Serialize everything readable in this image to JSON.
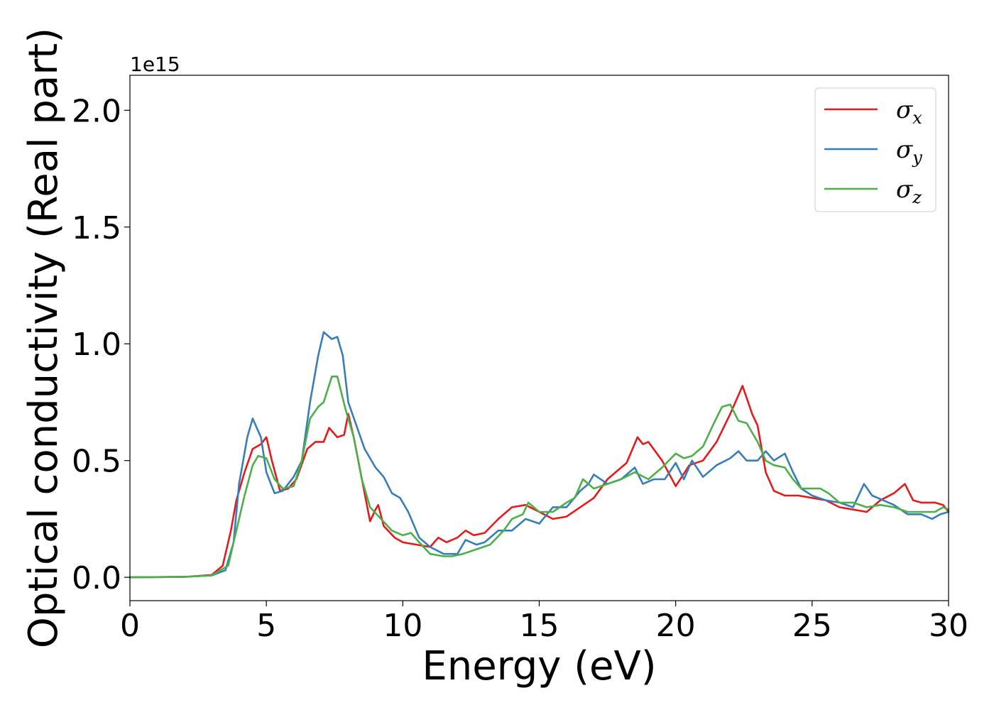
{
  "chart_data": {
    "type": "line",
    "xlabel": "Energy (eV)",
    "ylabel": "Optical conductivity (Real part)",
    "y_offset_label": "1e15",
    "xlim": [
      0,
      30
    ],
    "ylim": [
      -0.1,
      2.15
    ],
    "xticks": [
      0,
      5,
      10,
      15,
      20,
      25,
      30
    ],
    "xtick_labels": [
      "0",
      "5",
      "10",
      "15",
      "20",
      "25",
      "30"
    ],
    "yticks": [
      0.0,
      0.5,
      1.0,
      1.5,
      2.0
    ],
    "ytick_labels": [
      "0.0",
      "0.5",
      "1.0",
      "1.5",
      "2.0"
    ],
    "grid": false,
    "legend_position": "top-right",
    "series": [
      {
        "name": "σx",
        "symbol": "σ",
        "subscript": "x",
        "color": "#e41a1c",
        "points": [
          [
            0,
            0
          ],
          [
            2,
            0.002
          ],
          [
            3,
            0.01
          ],
          [
            3.4,
            0.05
          ],
          [
            3.7,
            0.2
          ],
          [
            3.9,
            0.33
          ],
          [
            4.2,
            0.45
          ],
          [
            4.5,
            0.55
          ],
          [
            4.8,
            0.57
          ],
          [
            5.0,
            0.6
          ],
          [
            5.2,
            0.5
          ],
          [
            5.5,
            0.37
          ],
          [
            5.8,
            0.38
          ],
          [
            6.1,
            0.42
          ],
          [
            6.5,
            0.55
          ],
          [
            6.8,
            0.58
          ],
          [
            7.1,
            0.58
          ],
          [
            7.3,
            0.64
          ],
          [
            7.6,
            0.6
          ],
          [
            7.85,
            0.61
          ],
          [
            8.0,
            0.7
          ],
          [
            8.2,
            0.6
          ],
          [
            8.5,
            0.42
          ],
          [
            8.8,
            0.24
          ],
          [
            9.0,
            0.29
          ],
          [
            9.1,
            0.31
          ],
          [
            9.3,
            0.22
          ],
          [
            9.7,
            0.17
          ],
          [
            10.0,
            0.15
          ],
          [
            10.5,
            0.14
          ],
          [
            11.0,
            0.13
          ],
          [
            11.3,
            0.17
          ],
          [
            11.6,
            0.15
          ],
          [
            12.0,
            0.17
          ],
          [
            12.3,
            0.2
          ],
          [
            12.6,
            0.18
          ],
          [
            13.0,
            0.19
          ],
          [
            13.5,
            0.25
          ],
          [
            14.0,
            0.3
          ],
          [
            14.5,
            0.31
          ],
          [
            15.0,
            0.28
          ],
          [
            15.5,
            0.25
          ],
          [
            16.0,
            0.26
          ],
          [
            16.5,
            0.3
          ],
          [
            17.0,
            0.34
          ],
          [
            17.5,
            0.42
          ],
          [
            17.8,
            0.45
          ],
          [
            18.2,
            0.49
          ],
          [
            18.6,
            0.6
          ],
          [
            18.8,
            0.57
          ],
          [
            19.0,
            0.58
          ],
          [
            19.5,
            0.5
          ],
          [
            20.0,
            0.39
          ],
          [
            20.5,
            0.48
          ],
          [
            21.0,
            0.5
          ],
          [
            21.5,
            0.58
          ],
          [
            22.0,
            0.7
          ],
          [
            22.3,
            0.78
          ],
          [
            22.45,
            0.82
          ],
          [
            22.8,
            0.7
          ],
          [
            23.0,
            0.65
          ],
          [
            23.3,
            0.45
          ],
          [
            23.6,
            0.37
          ],
          [
            24.0,
            0.35
          ],
          [
            24.5,
            0.35
          ],
          [
            25.0,
            0.34
          ],
          [
            25.5,
            0.33
          ],
          [
            26.0,
            0.3
          ],
          [
            26.5,
            0.29
          ],
          [
            27.0,
            0.28
          ],
          [
            27.5,
            0.33
          ],
          [
            28.0,
            0.36
          ],
          [
            28.4,
            0.4
          ],
          [
            28.7,
            0.33
          ],
          [
            29.0,
            0.32
          ],
          [
            29.5,
            0.32
          ],
          [
            29.8,
            0.31
          ],
          [
            30.0,
            0.28
          ]
        ]
      },
      {
        "name": "σy",
        "symbol": "σ",
        "subscript": "y",
        "color": "#377eb8",
        "points": [
          [
            0,
            0
          ],
          [
            2,
            0.002
          ],
          [
            3,
            0.008
          ],
          [
            3.5,
            0.03
          ],
          [
            3.8,
            0.15
          ],
          [
            4.0,
            0.4
          ],
          [
            4.3,
            0.6
          ],
          [
            4.5,
            0.68
          ],
          [
            4.8,
            0.6
          ],
          [
            5.0,
            0.45
          ],
          [
            5.3,
            0.36
          ],
          [
            5.6,
            0.37
          ],
          [
            6.0,
            0.43
          ],
          [
            6.3,
            0.5
          ],
          [
            6.6,
            0.75
          ],
          [
            6.9,
            0.95
          ],
          [
            7.1,
            1.05
          ],
          [
            7.4,
            1.02
          ],
          [
            7.6,
            1.03
          ],
          [
            7.8,
            0.95
          ],
          [
            8.0,
            0.75
          ],
          [
            8.3,
            0.65
          ],
          [
            8.6,
            0.55
          ],
          [
            9.0,
            0.47
          ],
          [
            9.3,
            0.43
          ],
          [
            9.6,
            0.36
          ],
          [
            9.9,
            0.34
          ],
          [
            10.2,
            0.28
          ],
          [
            10.6,
            0.17
          ],
          [
            11.0,
            0.13
          ],
          [
            11.5,
            0.1
          ],
          [
            12.0,
            0.1
          ],
          [
            12.3,
            0.16
          ],
          [
            12.7,
            0.14
          ],
          [
            13.0,
            0.15
          ],
          [
            13.5,
            0.2
          ],
          [
            14.0,
            0.2
          ],
          [
            14.5,
            0.25
          ],
          [
            15.0,
            0.23
          ],
          [
            15.5,
            0.3
          ],
          [
            16.0,
            0.3
          ],
          [
            16.5,
            0.37
          ],
          [
            16.8,
            0.4
          ],
          [
            17.0,
            0.44
          ],
          [
            17.5,
            0.4
          ],
          [
            18.0,
            0.42
          ],
          [
            18.5,
            0.47
          ],
          [
            18.8,
            0.4
          ],
          [
            19.2,
            0.42
          ],
          [
            19.6,
            0.42
          ],
          [
            20.0,
            0.49
          ],
          [
            20.3,
            0.42
          ],
          [
            20.6,
            0.5
          ],
          [
            21.0,
            0.43
          ],
          [
            21.5,
            0.48
          ],
          [
            22.0,
            0.51
          ],
          [
            22.3,
            0.54
          ],
          [
            22.6,
            0.5
          ],
          [
            23.0,
            0.5
          ],
          [
            23.3,
            0.54
          ],
          [
            23.6,
            0.5
          ],
          [
            24.0,
            0.53
          ],
          [
            24.3,
            0.45
          ],
          [
            24.6,
            0.38
          ],
          [
            25.0,
            0.35
          ],
          [
            25.5,
            0.33
          ],
          [
            26.0,
            0.32
          ],
          [
            26.5,
            0.3
          ],
          [
            26.9,
            0.4
          ],
          [
            27.2,
            0.35
          ],
          [
            27.6,
            0.33
          ],
          [
            28.0,
            0.31
          ],
          [
            28.5,
            0.27
          ],
          [
            29.0,
            0.27
          ],
          [
            29.4,
            0.25
          ],
          [
            29.7,
            0.27
          ],
          [
            30.0,
            0.28
          ]
        ]
      },
      {
        "name": "σz",
        "symbol": "σ",
        "subscript": "z",
        "color": "#4daf4a",
        "points": [
          [
            0,
            0
          ],
          [
            2,
            0.002
          ],
          [
            3,
            0.008
          ],
          [
            3.6,
            0.05
          ],
          [
            3.9,
            0.2
          ],
          [
            4.2,
            0.35
          ],
          [
            4.5,
            0.48
          ],
          [
            4.7,
            0.52
          ],
          [
            5.0,
            0.51
          ],
          [
            5.3,
            0.42
          ],
          [
            5.6,
            0.38
          ],
          [
            6.0,
            0.39
          ],
          [
            6.3,
            0.5
          ],
          [
            6.6,
            0.68
          ],
          [
            6.9,
            0.73
          ],
          [
            7.1,
            0.75
          ],
          [
            7.4,
            0.86
          ],
          [
            7.6,
            0.86
          ],
          [
            7.9,
            0.72
          ],
          [
            8.2,
            0.6
          ],
          [
            8.5,
            0.42
          ],
          [
            8.8,
            0.3
          ],
          [
            9.2,
            0.25
          ],
          [
            9.6,
            0.2
          ],
          [
            10.0,
            0.18
          ],
          [
            10.3,
            0.19
          ],
          [
            10.6,
            0.15
          ],
          [
            11.0,
            0.1
          ],
          [
            11.5,
            0.09
          ],
          [
            11.8,
            0.09
          ],
          [
            12.2,
            0.1
          ],
          [
            12.7,
            0.12
          ],
          [
            13.2,
            0.14
          ],
          [
            13.7,
            0.2
          ],
          [
            14.0,
            0.25
          ],
          [
            14.4,
            0.27
          ],
          [
            14.6,
            0.32
          ],
          [
            15.0,
            0.28
          ],
          [
            15.5,
            0.28
          ],
          [
            16.0,
            0.32
          ],
          [
            16.3,
            0.34
          ],
          [
            16.6,
            0.42
          ],
          [
            17.0,
            0.38
          ],
          [
            17.5,
            0.4
          ],
          [
            18.0,
            0.42
          ],
          [
            18.5,
            0.45
          ],
          [
            19.0,
            0.42
          ],
          [
            19.5,
            0.47
          ],
          [
            20.0,
            0.53
          ],
          [
            20.3,
            0.51
          ],
          [
            20.6,
            0.52
          ],
          [
            21.0,
            0.56
          ],
          [
            21.4,
            0.66
          ],
          [
            21.7,
            0.73
          ],
          [
            22.0,
            0.74
          ],
          [
            22.3,
            0.67
          ],
          [
            22.6,
            0.66
          ],
          [
            23.0,
            0.58
          ],
          [
            23.3,
            0.5
          ],
          [
            23.6,
            0.48
          ],
          [
            24.0,
            0.47
          ],
          [
            24.3,
            0.42
          ],
          [
            24.6,
            0.38
          ],
          [
            25.0,
            0.38
          ],
          [
            25.3,
            0.38
          ],
          [
            25.6,
            0.36
          ],
          [
            26.0,
            0.32
          ],
          [
            26.5,
            0.32
          ],
          [
            27.0,
            0.3
          ],
          [
            27.5,
            0.31
          ],
          [
            28.0,
            0.3
          ],
          [
            28.5,
            0.28
          ],
          [
            29.0,
            0.28
          ],
          [
            29.5,
            0.28
          ],
          [
            29.8,
            0.3
          ],
          [
            30.0,
            0.29
          ]
        ]
      }
    ]
  }
}
